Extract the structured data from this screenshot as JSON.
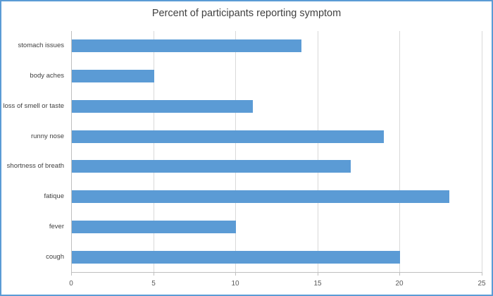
{
  "chart_data": {
    "type": "bar",
    "orientation": "horizontal",
    "title": "Percent of participants reporting symptom",
    "categories": [
      "stomach issues",
      "body aches",
      "loss of smell or taste",
      "runny nose",
      "shortness of breath",
      "fatique",
      "fever",
      "cough"
    ],
    "values": [
      14,
      5,
      11,
      19,
      17,
      23,
      10,
      20
    ],
    "xlabel": "",
    "ylabel": "",
    "xlim": [
      0,
      25
    ],
    "xticks": [
      0,
      5,
      10,
      15,
      20,
      25
    ],
    "grid": true,
    "legend": false,
    "bar_color": "#5b9bd5",
    "gridline_color": "#d9d9d9",
    "axis_line_color": "#bfbfbf",
    "tick_label_color": "#595959",
    "category_label_color": "#404040",
    "title_color": "#404040",
    "frame_border_color": "#5b9bd5"
  }
}
